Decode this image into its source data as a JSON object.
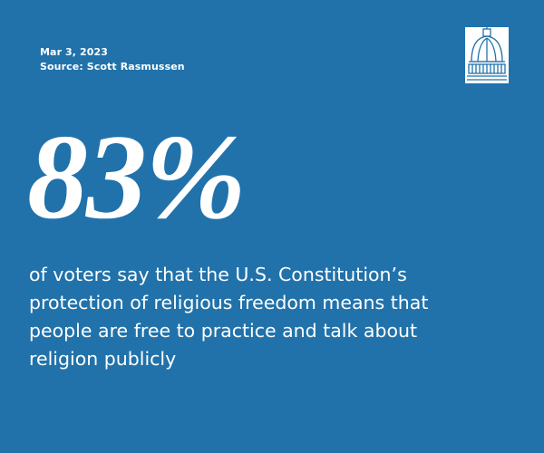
{
  "header": {
    "date": "Mar 3, 2023",
    "source": "Source: Scott Rasmussen"
  },
  "stat": "83%",
  "description": [
    "of voters say that the U.S. Constitution’s",
    "protection of religious freedom means that",
    "people are free to practice and talk about",
    "religion publicly"
  ]
}
